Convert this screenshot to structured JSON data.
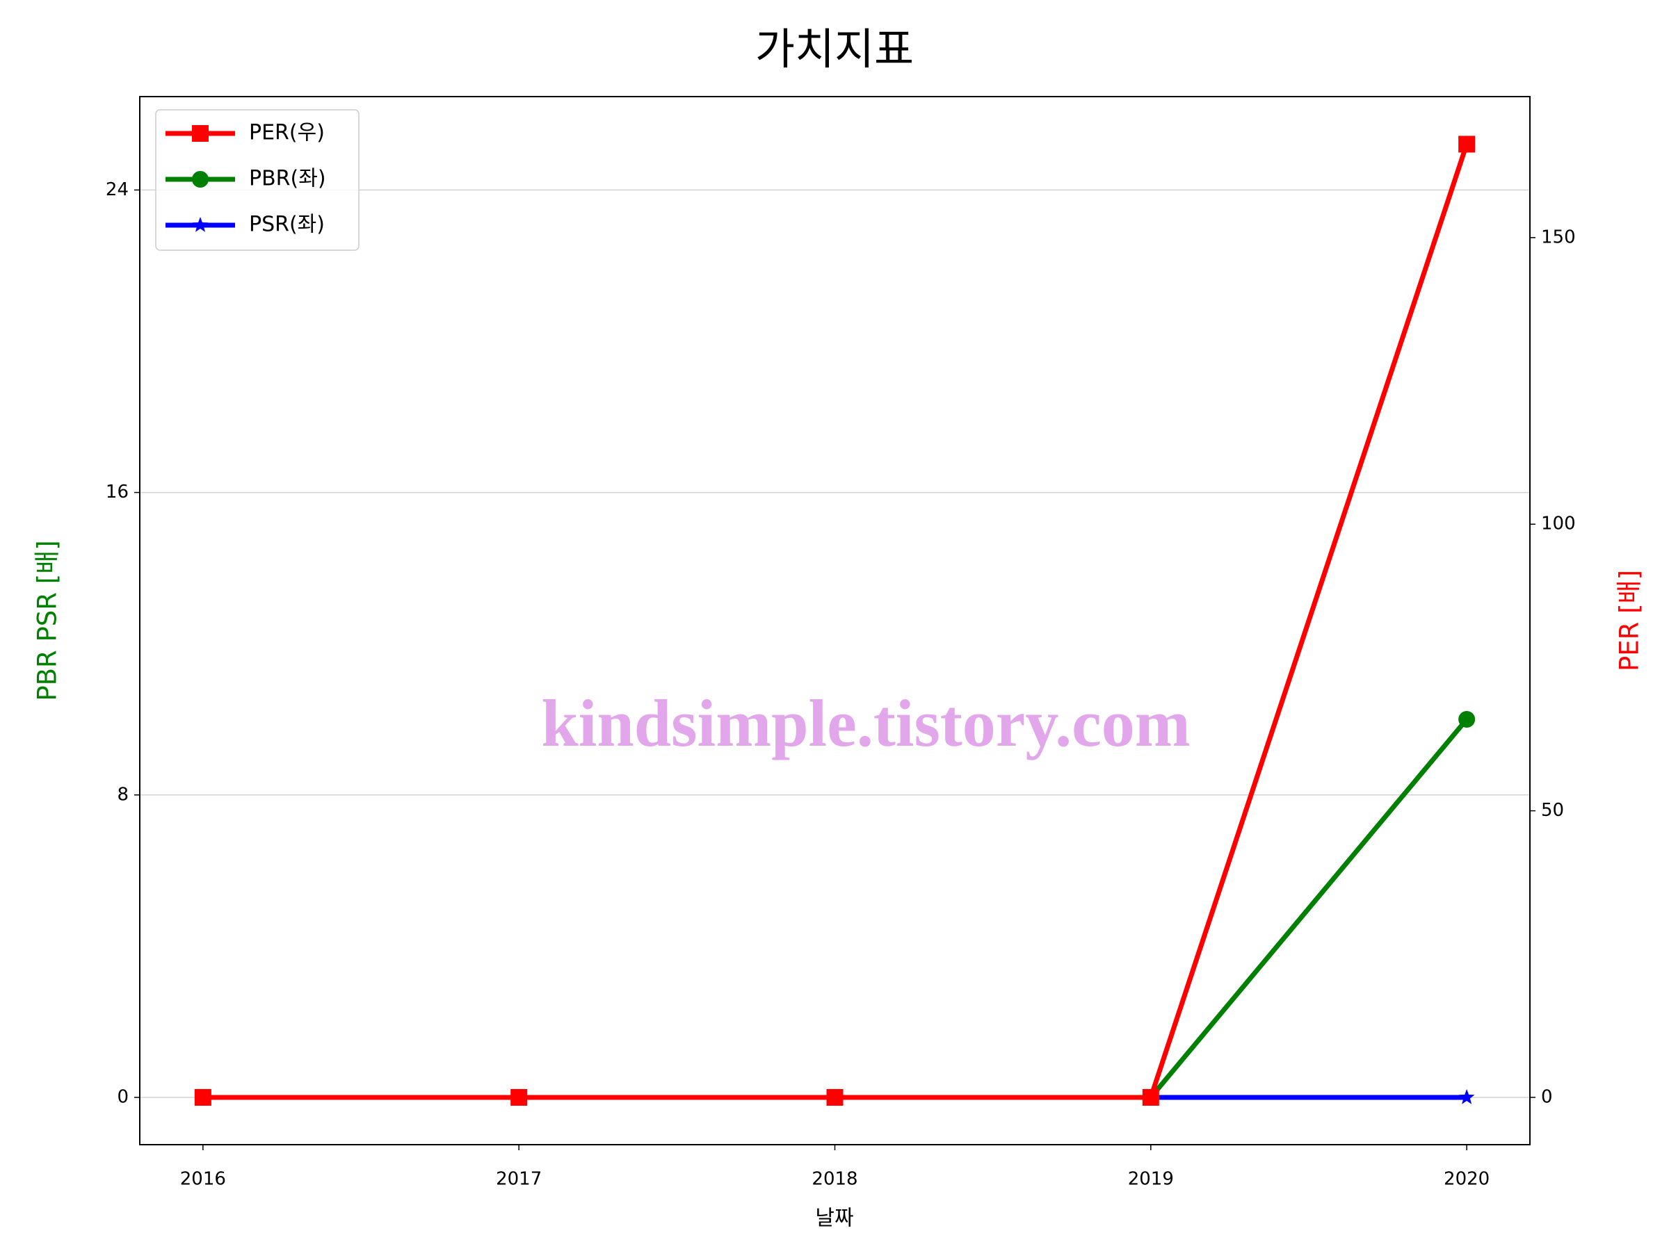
{
  "chart_data": {
    "type": "line",
    "title": "가치지표",
    "xlabel": "날짜",
    "ylabel": "PBR PSR [배]",
    "y2label": "PER [배]",
    "watermark": "kindsimple.tistory.com",
    "x": [
      2016,
      2017,
      2018,
      2019,
      2020
    ],
    "xlim": [
      2015.8,
      2020.2
    ],
    "xticks": [
      2016,
      2017,
      2018,
      2019,
      2020
    ],
    "ylim": [
      -1.25,
      26.47
    ],
    "yticks": [
      0,
      8,
      16,
      24
    ],
    "y2lim": [
      -8.25,
      174.6
    ],
    "y2ticks": [
      0,
      50,
      100,
      150
    ],
    "grid": true,
    "legend": "upper left",
    "series": [
      {
        "name": "PER(우)",
        "color": "#ff0000",
        "marker": "square",
        "axis": "y2",
        "values": [
          0,
          0,
          0,
          0,
          166.3
        ]
      },
      {
        "name": "PBR(좌)",
        "color": "#008000",
        "marker": "circle",
        "values": [
          0,
          0,
          0,
          0,
          10
        ]
      },
      {
        "name": "PSR(좌)",
        "color": "#0000ff",
        "marker": "star",
        "values": [
          0,
          0,
          0,
          0,
          0
        ]
      }
    ]
  }
}
